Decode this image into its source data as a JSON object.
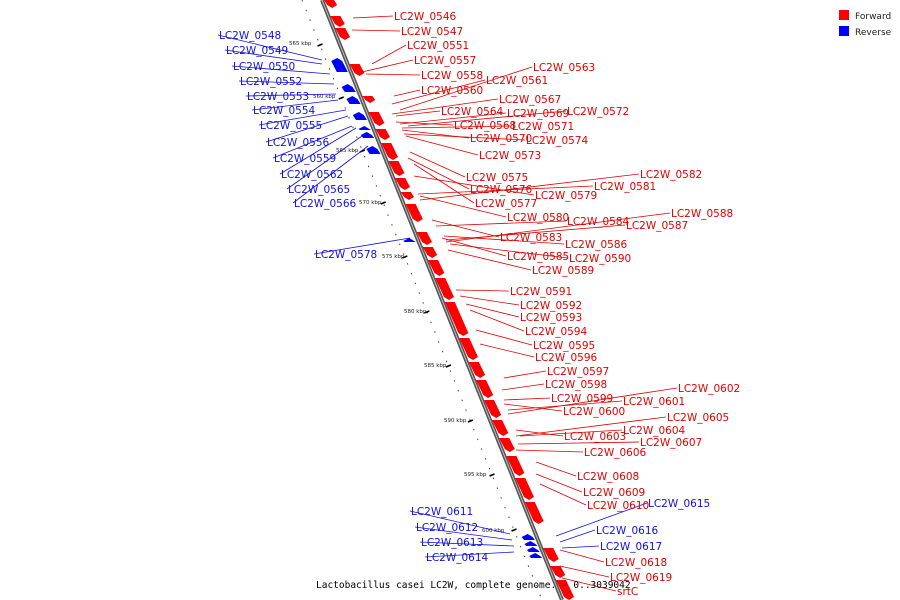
{
  "caption": "Lactobacillus casei LC2W, complete genome. - 0..3039042",
  "legend": [
    {
      "label": "Forward",
      "color": "#ff0000"
    },
    {
      "label": "Reverse",
      "color": "#0000ff"
    }
  ],
  "ticks": [
    "565 kbp",
    "560 kbp",
    "565 kbp",
    "570 kbp",
    "575 kbp",
    "580 kbp",
    "585 kbp",
    "590 kbp",
    "595 kbp",
    "600 kbp"
  ],
  "forward_genes": [
    "LC2W_0546",
    "LC2W_0547",
    "LC2W_0551",
    "LC2W_0557",
    "LC2W_0558",
    "LC2W_0560",
    "LC2W_0561",
    "LC2W_0563",
    "LC2W_0564",
    "LC2W_0567",
    "LC2W_0568",
    "LC2W_0569",
    "LC2W_0570",
    "LC2W_0571",
    "LC2W_0572",
    "LC2W_0573",
    "LC2W_0574",
    "LC2W_0575",
    "LC2W_0576",
    "LC2W_0577",
    "LC2W_0579",
    "LC2W_0580",
    "LC2W_0581",
    "LC2W_0582",
    "LC2W_0583",
    "LC2W_0584",
    "LC2W_0585",
    "LC2W_0586",
    "LC2W_0587",
    "LC2W_0588",
    "LC2W_0589",
    "LC2W_0590",
    "LC2W_0591",
    "LC2W_0592",
    "LC2W_0593",
    "LC2W_0594",
    "LC2W_0595",
    "LC2W_0596",
    "LC2W_0597",
    "LC2W_0598",
    "LC2W_0599",
    "LC2W_0600",
    "LC2W_0601",
    "LC2W_0602",
    "LC2W_0603",
    "LC2W_0604",
    "LC2W_0605",
    "LC2W_0606",
    "LC2W_0607",
    "LC2W_0608",
    "LC2W_0609",
    "LC2W_0610",
    "LC2W_0618",
    "LC2W_0619",
    "srtC"
  ],
  "reverse_genes": [
    "LC2W_0548",
    "LC2W_0549",
    "LC2W_0550",
    "LC2W_0552",
    "LC2W_0553",
    "LC2W_0554",
    "LC2W_0555",
    "LC2W_0556",
    "LC2W_0559",
    "LC2W_0562",
    "LC2W_0565",
    "LC2W_0566",
    "LC2W_0578",
    "LC2W_0611",
    "LC2W_0612",
    "LC2W_0613",
    "LC2W_0614",
    "LC2W_0615",
    "LC2W_0616",
    "LC2W_0617"
  ]
}
